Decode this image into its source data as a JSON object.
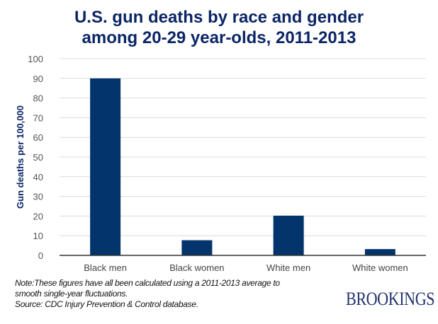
{
  "chart_data": {
    "type": "bar",
    "title_lines": [
      "U.S. gun deaths by race and gender",
      "among 20-29 year-olds, 2011-2013"
    ],
    "categories": [
      "Black men",
      "Black women",
      "White men",
      "White women"
    ],
    "values": [
      90,
      7.7,
      20.2,
      3.2
    ],
    "ylabel": "Gun deaths per 100,000",
    "xlabel": "",
    "ylim": [
      0,
      100
    ],
    "yticks": [
      0,
      10,
      20,
      30,
      40,
      50,
      60,
      70,
      80,
      90,
      100
    ],
    "grid": true,
    "bar_color": "#03346b"
  },
  "footer": {
    "note_line1": "Note:These figures have all been calculated using a 2011-2013 average to",
    "note_line2": "smooth single-year fluctuations.",
    "source": "Source: CDC Injury Prevention & Control database.",
    "logo": "BROOKINGS"
  }
}
